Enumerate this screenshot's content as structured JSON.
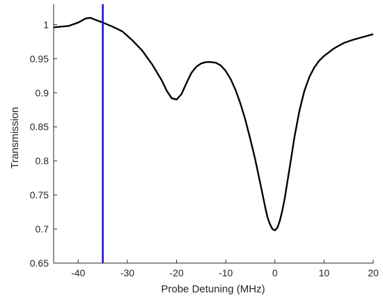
{
  "chart_data": {
    "type": "line",
    "title": "",
    "xlabel": "Probe Detuning (MHz)",
    "ylabel": "Transmission",
    "xlim": [
      -45,
      20
    ],
    "ylim": [
      0.65,
      1.03
    ],
    "xticks": [
      -40,
      -30,
      -20,
      -10,
      0,
      10,
      20
    ],
    "yticks": [
      0.65,
      0.7,
      0.75,
      0.8,
      0.85,
      0.9,
      0.95,
      1
    ],
    "xtick_labels": [
      "-40",
      "-30",
      "-20",
      "-10",
      "0",
      "10",
      "20"
    ],
    "ytick_labels": [
      "0.65",
      "0.7",
      "0.75",
      "0.8",
      "0.85",
      "0.9",
      "0.95",
      "1"
    ],
    "grid": false,
    "legend": "none",
    "series": [
      {
        "color": "#000000",
        "x": [
          -45,
          -42,
          -40,
          -38.5,
          -37.5,
          -36.5,
          -35,
          -33,
          -31,
          -29,
          -27,
          -25,
          -23,
          -22,
          -21,
          -20,
          -19,
          -18,
          -17,
          -16,
          -15,
          -14,
          -13,
          -12,
          -11,
          -10,
          -9,
          -8,
          -7,
          -6,
          -5,
          -4,
          -3,
          -2,
          -1.5,
          -1,
          -0.5,
          0,
          0.5,
          1,
          1.5,
          2,
          3,
          4,
          5,
          6,
          7,
          8,
          9,
          10,
          12,
          14,
          16,
          18,
          20
        ],
        "y": [
          0.996,
          0.998,
          1.003,
          1.009,
          1.01,
          1.007,
          1.003,
          0.997,
          0.99,
          0.977,
          0.962,
          0.942,
          0.918,
          0.903,
          0.892,
          0.89,
          0.898,
          0.914,
          0.929,
          0.938,
          0.943,
          0.945,
          0.945,
          0.944,
          0.94,
          0.932,
          0.92,
          0.904,
          0.884,
          0.86,
          0.832,
          0.802,
          0.768,
          0.733,
          0.717,
          0.707,
          0.7,
          0.698,
          0.702,
          0.712,
          0.727,
          0.745,
          0.79,
          0.836,
          0.874,
          0.903,
          0.923,
          0.937,
          0.947,
          0.954,
          0.965,
          0.973,
          0.978,
          0.982,
          0.986
        ]
      },
      {
        "color": "#1a14d6",
        "x": [
          -35,
          -35
        ],
        "y": [
          0.65,
          1.03
        ]
      }
    ]
  }
}
